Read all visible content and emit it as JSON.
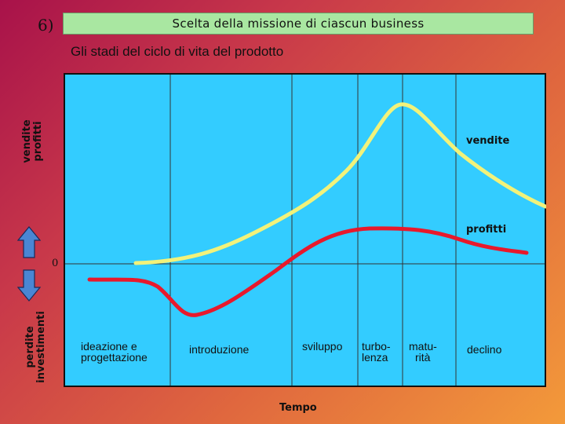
{
  "slide": {
    "number": "6)",
    "title": "Scelta della missione di ciascun business",
    "subtitle": "Gli stadi del ciclo di vita del prodotto"
  },
  "side_labels": {
    "top": [
      "vendite",
      "profitti"
    ],
    "bottom": [
      "perdite",
      "investimenti"
    ]
  },
  "diagram": {
    "zero_label": "0",
    "curve_labels": {
      "sales": "vendite",
      "profits": "profitti"
    },
    "stages": [
      {
        "lines": [
          "ideazione e",
          "progettazione"
        ]
      },
      {
        "lines": [
          "introduzione"
        ]
      },
      {
        "lines": [
          "sviluppo"
        ]
      },
      {
        "lines": [
          "turbo-",
          "lenza"
        ]
      },
      {
        "lines": [
          "matu-",
          "rità"
        ]
      },
      {
        "lines": [
          "declino"
        ]
      }
    ],
    "x_axis_title": "Tempo"
  },
  "colors": {
    "plot_background": "#33ccff",
    "sales_curve": "#f2f27a",
    "profits_curve": "#e8192c",
    "title_bar": "#a9e7a1",
    "arrow_fill": "#4a86d4"
  }
}
